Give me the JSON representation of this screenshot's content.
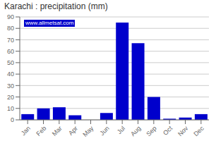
{
  "chart_data": {
    "type": "bar",
    "title": "Karachi : precipitation (mm)",
    "categories": [
      "Jan",
      "Feb",
      "Mar",
      "Apr",
      "May",
      "Jun",
      "Jul",
      "Aug",
      "Sep",
      "Oct",
      "Nov",
      "Dec"
    ],
    "values": [
      5,
      10,
      11,
      4,
      0,
      6,
      85,
      67,
      20,
      1,
      2,
      5
    ],
    "color": "#0000cc",
    "ylim": [
      0,
      90
    ],
    "yticks": [
      0,
      10,
      20,
      30,
      40,
      50,
      60,
      70,
      80,
      90
    ],
    "grid": true,
    "annotations": [
      "www.allmetsat.com"
    ]
  }
}
